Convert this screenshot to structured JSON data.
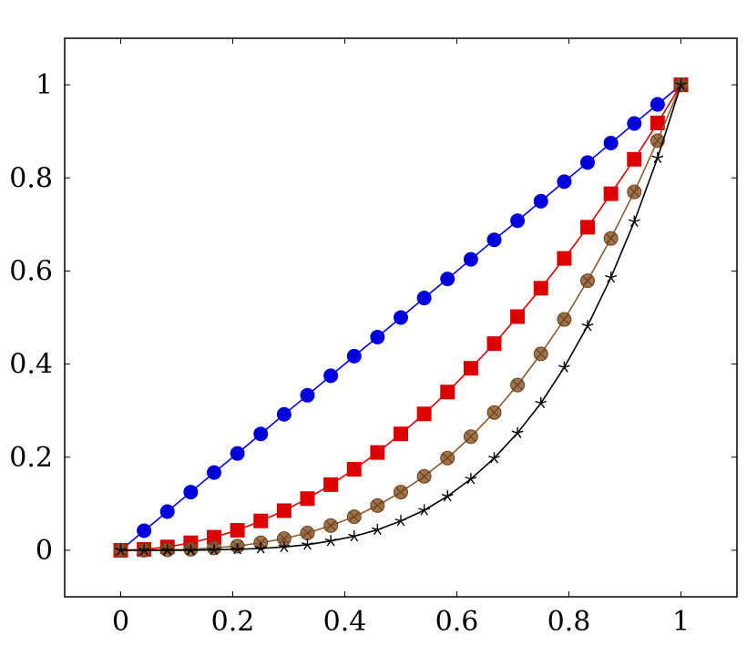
{
  "chart_data": {
    "type": "line",
    "title": "",
    "xlabel": "",
    "ylabel": "",
    "xlim": [
      -0.1,
      1.1
    ],
    "ylim": [
      -0.1,
      1.1
    ],
    "grid": false,
    "legend": "none",
    "x_ticks": [
      0,
      0.2,
      0.4,
      0.6,
      0.8,
      1
    ],
    "x_tick_labels": [
      "0",
      "0.2",
      "0.4",
      "0.6",
      "0.8",
      "1"
    ],
    "y_ticks": [
      0,
      0.2,
      0.4,
      0.6,
      0.8,
      1
    ],
    "y_tick_labels": [
      "0",
      "0.2",
      "0.4",
      "0.6",
      "0.8",
      "1"
    ],
    "x": [
      0,
      0.0417,
      0.0833,
      0.125,
      0.1667,
      0.2083,
      0.25,
      0.2917,
      0.3333,
      0.375,
      0.4167,
      0.4583,
      0.5,
      0.5417,
      0.5833,
      0.625,
      0.6667,
      0.7083,
      0.75,
      0.7917,
      0.8333,
      0.875,
      0.9167,
      0.9583,
      1
    ],
    "series": [
      {
        "color": "#0000dd",
        "marker": "circle",
        "values": [
          0,
          0.042,
          0.083,
          0.125,
          0.167,
          0.208,
          0.25,
          0.292,
          0.333,
          0.375,
          0.417,
          0.458,
          0.5,
          0.542,
          0.583,
          0.625,
          0.667,
          0.708,
          0.75,
          0.792,
          0.833,
          0.875,
          0.917,
          0.958,
          1
        ]
      },
      {
        "color": "#dd0000",
        "marker": "square",
        "values": [
          0,
          0.002,
          0.007,
          0.016,
          0.028,
          0.043,
          0.063,
          0.085,
          0.111,
          0.141,
          0.174,
          0.21,
          0.25,
          0.293,
          0.34,
          0.391,
          0.444,
          0.502,
          0.563,
          0.627,
          0.694,
          0.766,
          0.84,
          0.918,
          1
        ]
      },
      {
        "color": "#8b5a2b",
        "marker": "circle-cross",
        "values": [
          0,
          0,
          0.001,
          0.002,
          0.005,
          0.009,
          0.016,
          0.025,
          0.037,
          0.053,
          0.072,
          0.096,
          0.125,
          0.159,
          0.198,
          0.244,
          0.296,
          0.355,
          0.422,
          0.496,
          0.579,
          0.67,
          0.77,
          0.88,
          1
        ]
      },
      {
        "color": "#000000",
        "marker": "star",
        "values": [
          0,
          0,
          0,
          0,
          0.001,
          0.002,
          0.004,
          0.007,
          0.012,
          0.02,
          0.03,
          0.044,
          0.063,
          0.086,
          0.116,
          0.153,
          0.198,
          0.252,
          0.316,
          0.393,
          0.482,
          0.586,
          0.706,
          0.843,
          1
        ]
      }
    ]
  }
}
